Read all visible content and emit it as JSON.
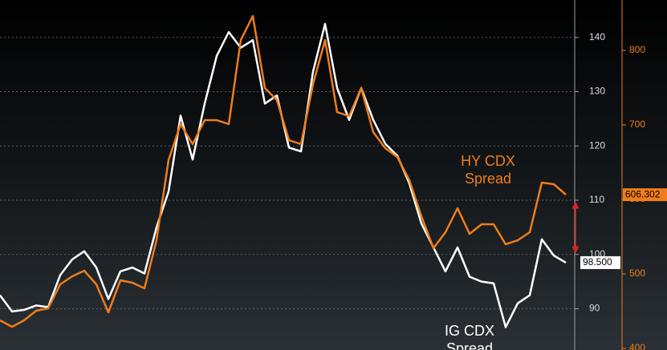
{
  "chart_data": {
    "type": "line",
    "categories": [
      null,
      null,
      null,
      null,
      null,
      null,
      null,
      null,
      null,
      null,
      null,
      null,
      null,
      null,
      null,
      null,
      null,
      null,
      null,
      null,
      null,
      null,
      null,
      null,
      null,
      null,
      null,
      null,
      null,
      null,
      null,
      null,
      null,
      null,
      null,
      null,
      null,
      null,
      null,
      null,
      null,
      null,
      null,
      null,
      null,
      null,
      null,
      null
    ],
    "series": [
      {
        "name": "IG CDX Spread",
        "color": "#ffffff",
        "values": [
          92.5,
          89.5,
          89.8,
          90.6,
          90.3,
          96.2,
          99.1,
          100.6,
          97.6,
          91.8,
          96.9,
          97.6,
          96.5,
          105.0,
          111.6,
          125.6,
          117.5,
          127.8,
          136.6,
          141.0,
          138.1,
          139.5,
          127.8,
          129.3,
          119.7,
          119.0,
          133.7,
          142.5,
          130.7,
          124.8,
          130.7,
          124.8,
          120.4,
          118.2,
          113.1,
          105.7,
          101.3,
          96.9,
          101.3,
          95.9,
          95.0,
          94.7,
          86.6,
          91.0,
          92.5,
          102.8,
          99.8,
          98.5
        ],
        "value_labels": [
          null,
          null,
          null,
          null,
          null,
          null,
          null,
          null,
          null,
          null,
          null,
          null,
          null,
          null,
          null,
          null,
          null,
          null,
          null,
          null,
          null,
          null,
          null,
          null,
          null,
          null,
          null,
          null,
          null,
          null,
          null,
          null,
          null,
          null,
          null,
          null,
          null,
          null,
          null,
          null,
          null,
          null,
          null,
          null,
          null,
          null,
          null,
          "98.500"
        ]
      },
      {
        "name": "HY CDX Spread",
        "color": "#f07d1a",
        "axis": "y2",
        "values": [
          437.6,
          429.0,
          437.6,
          450.5,
          453.7,
          486.0,
          496.7,
          504.3,
          486.0,
          448.3,
          491.4,
          488.1,
          480.6,
          545.1,
          652.7,
          701.0,
          674.2,
          706.4,
          706.4,
          701.0,
          813.9,
          846.2,
          749.4,
          733.3,
          679.5,
          674.2,
          754.8,
          813.9,
          717.2,
          711.8,
          749.4,
          690.3,
          668.8,
          656.9,
          625.8,
          577.4,
          534.4,
          555.9,
          588.1,
          553.7,
          566.6,
          566.6,
          539.7,
          545.1,
          555.9,
          622.5,
          620.4,
          606.302
        ],
        "value_labels": [
          null,
          null,
          null,
          null,
          null,
          null,
          null,
          null,
          null,
          null,
          null,
          null,
          null,
          null,
          null,
          null,
          null,
          null,
          null,
          null,
          null,
          null,
          null,
          null,
          null,
          null,
          null,
          null,
          null,
          null,
          null,
          null,
          null,
          null,
          null,
          null,
          null,
          null,
          null,
          null,
          null,
          null,
          null,
          null,
          null,
          null,
          null,
          "606.302"
        ]
      }
    ],
    "ylim": [
      82.4,
      146.9
    ],
    "yticks": [
      90,
      100,
      110,
      120,
      130,
      140
    ],
    "y2lim": [
      397.8,
      867.7
    ],
    "y2ticks": [
      400,
      500,
      600,
      700,
      800
    ],
    "grid": true
  }
}
